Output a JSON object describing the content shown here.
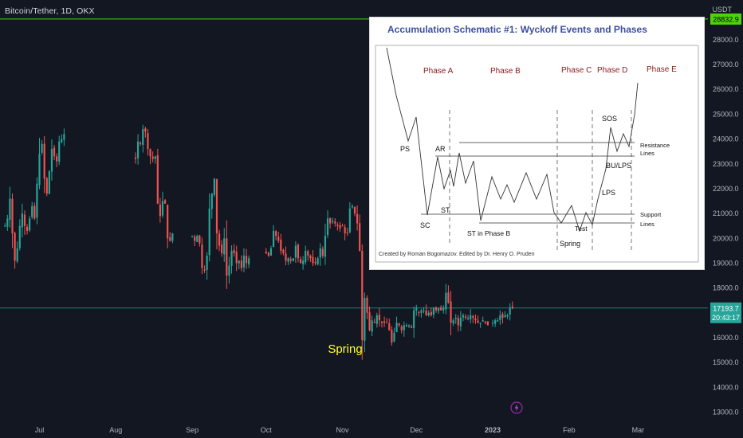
{
  "header": {
    "symbol_title": "Bitcoin/Tether, 1D, OKX",
    "currency": "USDT"
  },
  "chart_data": {
    "type": "candlestick",
    "x_axis_labels": [
      "Jul",
      "Aug",
      "Sep",
      "Oct",
      "Nov",
      "Dec",
      "2023",
      "Feb",
      "Mar"
    ],
    "y_axis_labels": [
      "13000.0",
      "14000.0",
      "15000.0",
      "16000.0",
      "17000.0",
      "18000.0",
      "19000.0",
      "20000.0",
      "21000.0",
      "22000.0",
      "23000.0",
      "24000.0",
      "25000.0",
      "26000.0",
      "27000.0",
      "28000.0"
    ],
    "ylim": [
      12600,
      29600
    ],
    "price_lines": [
      {
        "label": "28832.9",
        "value": 28832.9,
        "color": "#4cd30c"
      },
      {
        "label": "17193.7",
        "value": 17193.7,
        "color": "#26a69a"
      }
    ],
    "countdown_label": "20:43:17",
    "annotation": {
      "text": "Spring",
      "color": "#ffff33"
    },
    "colors": {
      "up": "#26a69a",
      "down": "#ef5350",
      "background": "#131722",
      "axis_text": "#b2b5be"
    },
    "series_segments": [
      {
        "start": "2022-06-17",
        "anchors": [
          20500,
          20800,
          21600,
          20200,
          19100,
          19600,
          20500,
          21000,
          20500,
          20300,
          20800,
          21300,
          20800,
          22200,
          23400,
          23800,
          22400,
          21800,
          22700,
          23600,
          23300,
          23100,
          23900,
          24000,
          24200
        ]
      },
      {
        "start": "2022-08-09",
        "anchors": [
          23200,
          23900,
          23800,
          24400,
          24300,
          23600,
          23300,
          23200,
          23300,
          21400,
          20900,
          21500,
          21400,
          20000,
          19900,
          20200
        ]
      },
      {
        "start": "2022-09-01",
        "anchors": [
          20100,
          19900,
          20100,
          19800,
          18800,
          18700,
          19300,
          21200,
          21800,
          22400,
          20200,
          19700,
          19400,
          20000,
          18500,
          18900,
          19500,
          19400,
          19000,
          19100,
          18800,
          19300,
          19000,
          19200
        ]
      },
      {
        "start": "2022-10-01",
        "anchors": [
          19400,
          19300,
          19600,
          20300,
          20100,
          19900,
          19500,
          19400,
          19100,
          19200,
          19100,
          19200,
          19700,
          19200,
          19000,
          19100,
          19500,
          19300,
          19200,
          19000,
          19000,
          19200,
          19600,
          19300,
          20100,
          20800,
          20600,
          20700,
          20600,
          20500,
          20400
        ]
      },
      {
        "start": "2022-11-01",
        "anchors": [
          20500,
          20200,
          20200,
          21200,
          21300,
          21000,
          20600,
          19500,
          15900,
          17600,
          17000,
          16300,
          16700,
          16600,
          16900,
          16700,
          16600,
          16600,
          16600,
          16300,
          15800,
          16200,
          16600,
          16500,
          16300,
          16500,
          16500,
          16500,
          16400,
          17100,
          17200
        ]
      },
      {
        "start": "2022-12-02",
        "anchors": [
          17000,
          17100,
          17100,
          16900,
          17000,
          16900,
          17200,
          17100,
          17200,
          17100,
          17200,
          17800,
          17400,
          16600,
          16700,
          16800,
          16500,
          16800,
          16900,
          16800,
          16800,
          16900,
          16800,
          16700,
          16600,
          16600,
          16700,
          16600,
          16500
        ]
      },
      {
        "start": "2023-01-01",
        "anchors": [
          16600,
          16700,
          16700,
          16900,
          16800,
          16900,
          16900,
          17200,
          17193.7
        ]
      }
    ]
  },
  "wyckoff": {
    "title": "Accumulation Schematic #1: Wyckoff Events and Phases",
    "phases": [
      "Phase A",
      "Phase B",
      "Phase C",
      "Phase D",
      "Phase E"
    ],
    "events": [
      "PS",
      "AR",
      "SC",
      "ST",
      "ST in Phase B",
      "Spring",
      "Test",
      "SOS",
      "LPS",
      "BU/LPS"
    ],
    "line_labels": {
      "resistance_1": "Resistance",
      "resistance_2": "Lines",
      "support_1": "Support",
      "support_2": "Lines"
    },
    "credit": "Created by Roman Bogomazov. Edited by Dr. Henry O. Pruden"
  }
}
